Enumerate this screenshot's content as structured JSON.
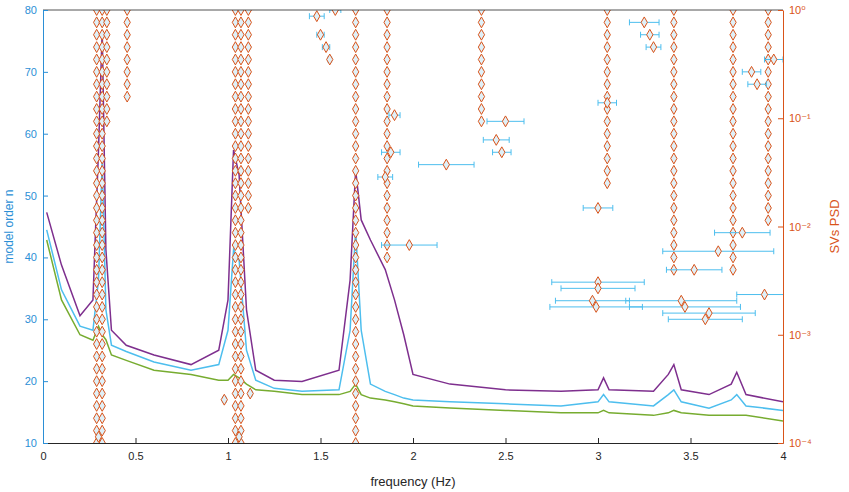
{
  "chart_data": {
    "type": "line",
    "x_label": "frequency (Hz)",
    "y_label": "model order n",
    "y2_label": "SVs PSD",
    "xlim": [
      0,
      4
    ],
    "xticks": [
      0,
      0.5,
      1,
      1.5,
      2,
      2.5,
      3,
      3.5,
      4
    ],
    "ylim": [
      10,
      80
    ],
    "yticks": [
      10,
      20,
      30,
      40,
      50,
      60,
      70,
      80
    ],
    "y2lim": [
      0.0001,
      1
    ],
    "y2ticks": [
      {
        "value": 0.0001,
        "label": "10⁻⁴"
      },
      {
        "value": 0.001,
        "label": "10⁻³"
      },
      {
        "value": 0.01,
        "label": "10⁻²"
      },
      {
        "value": 0.1,
        "label": "10⁻¹"
      },
      {
        "value": 1,
        "label": "10⁰"
      }
    ],
    "log": "y",
    "x": [
      0.02,
      0.1,
      0.2,
      0.27,
      0.3,
      0.32,
      0.34,
      0.37,
      0.45,
      0.6,
      0.8,
      0.95,
      1.0,
      1.03,
      1.06,
      1.1,
      1.15,
      1.25,
      1.4,
      1.6,
      1.66,
      1.69,
      1.72,
      1.77,
      1.85,
      1.9,
      1.95,
      2.0,
      2.2,
      2.5,
      2.8,
      3.0,
      3.03,
      3.06,
      3.3,
      3.38,
      3.41,
      3.45,
      3.6,
      3.72,
      3.75,
      3.8,
      4.0
    ],
    "series": [
      {
        "color": "#7E2F8E",
        "axis": "y2",
        "line_style": "solid",
        "values": [
          0.0135,
          0.0044,
          0.0015,
          0.0021,
          0.051,
          0.65,
          0.0061,
          0.0011,
          0.0008,
          0.00065,
          0.00053,
          0.00072,
          0.0021,
          0.051,
          0.03,
          0.0017,
          0.00047,
          0.00038,
          0.00037,
          0.00047,
          0.0032,
          0.033,
          0.0115,
          0.0075,
          0.004,
          0.0021,
          0.001,
          0.00043,
          0.00035,
          0.00031,
          0.0003,
          0.00031,
          0.0004,
          0.00031,
          0.0003,
          0.00043,
          0.00053,
          0.00031,
          0.00028,
          0.00035,
          0.00045,
          0.00028,
          0.00024
        ]
      },
      {
        "color": "#4DBEEE",
        "axis": "y2",
        "line_style": "solid",
        "values": [
          0.0093,
          0.0026,
          0.0012,
          0.0011,
          0.0032,
          0.041,
          0.0017,
          0.0008,
          0.0007,
          0.00056,
          0.00047,
          0.00053,
          0.0011,
          0.0061,
          0.0049,
          0.00072,
          0.00038,
          0.00032,
          0.0003,
          0.00031,
          0.0011,
          0.0093,
          0.0011,
          0.00035,
          0.0003,
          0.00028,
          0.00026,
          0.00025,
          0.00024,
          0.00023,
          0.00022,
          0.00024,
          0.00028,
          0.00024,
          0.00022,
          0.00028,
          0.00031,
          0.00024,
          0.00021,
          0.00025,
          0.00028,
          0.00022,
          0.0002
        ]
      },
      {
        "color": "#77AC30",
        "axis": "y2",
        "line_style": "solid",
        "values": [
          0.0075,
          0.0021,
          0.001,
          0.00089,
          0.0012,
          0.001,
          0.0009,
          0.00065,
          0.00058,
          0.00047,
          0.00043,
          0.00038,
          0.00038,
          0.00043,
          0.0004,
          0.00035,
          0.00031,
          0.0003,
          0.00028,
          0.00028,
          0.0003,
          0.00035,
          0.00028,
          0.00026,
          0.00025,
          0.00024,
          0.00023,
          0.00022,
          0.00021,
          0.0002,
          0.00019,
          0.00019,
          0.0002,
          0.00019,
          0.00018,
          0.00019,
          0.0002,
          0.00019,
          0.00018,
          0.00018,
          0.00018,
          0.00018,
          0.00016
        ]
      }
    ],
    "stable_poles": {
      "type": "scatter",
      "marker": "diamond",
      "color": "#D95319",
      "x": [
        0.29,
        0.29,
        0.29,
        0.29,
        0.29,
        0.29,
        0.29,
        0.29,
        0.29,
        0.29,
        0.29,
        0.29,
        0.29,
        0.29,
        0.29,
        0.29,
        0.29,
        0.29,
        0.29,
        0.29,
        0.29,
        0.29,
        0.29,
        0.29,
        0.29,
        0.29,
        0.29,
        0.29,
        0.29,
        0.29,
        0.29,
        0.29,
        0.29,
        0.29,
        0.29,
        0.29,
        0.32,
        0.32,
        0.32,
        0.32,
        0.32,
        0.32,
        0.32,
        0.32,
        0.32,
        0.32,
        0.32,
        0.32,
        0.32,
        0.32,
        0.32,
        0.32,
        0.32,
        0.32,
        0.32,
        0.32,
        0.32,
        0.32,
        0.32,
        0.32,
        0.32,
        0.32,
        0.32,
        0.32,
        0.32,
        0.32,
        0.32,
        0.32,
        0.32,
        0.32,
        0.32,
        0.32,
        1.04,
        1.04,
        1.04,
        1.04,
        1.04,
        1.04,
        1.04,
        1.04,
        1.04,
        1.04,
        1.04,
        1.04,
        1.04,
        1.04,
        1.04,
        1.04,
        1.04,
        1.04,
        1.04,
        1.04,
        1.04,
        1.04,
        1.04,
        1.04,
        1.04,
        1.04,
        1.04,
        1.04,
        1.04,
        1.04,
        1.04,
        1.04,
        1.04,
        1.04,
        1.04,
        1.04,
        1.07,
        1.07,
        1.07,
        1.07,
        1.07,
        1.07,
        1.07,
        1.07,
        1.07,
        1.07,
        1.07,
        1.07,
        1.07,
        1.07,
        1.07,
        1.07,
        1.07,
        1.07,
        1.07,
        1.07,
        1.07,
        1.07,
        1.07,
        1.07,
        1.07,
        1.07,
        1.07,
        1.07,
        1.07,
        1.07,
        1.07,
        1.07,
        1.07,
        1.07,
        1.07,
        1.07,
        1.69,
        1.69,
        1.69,
        1.69,
        1.69,
        1.69,
        1.69,
        1.69,
        1.69,
        1.69,
        1.69,
        1.69,
        1.69,
        1.69,
        1.69,
        1.69,
        1.69,
        1.69,
        1.69,
        1.69,
        1.69,
        1.69,
        1.69,
        1.69,
        1.69,
        1.69,
        1.69,
        1.69,
        1.69,
        1.69,
        1.69,
        1.69,
        1.69,
        1.69,
        1.69,
        1.69,
        0.345,
        0.345,
        0.345,
        0.345,
        0.345,
        0.345,
        0.345,
        0.345,
        0.345,
        0.345,
        0.455,
        0.455,
        0.455,
        0.455,
        0.455,
        0.455,
        0.455,
        0.455,
        1.11,
        1.11,
        1.11,
        1.11,
        1.11,
        1.11,
        1.11,
        1.11,
        1.11,
        1.11,
        1.11,
        1.11,
        1.11,
        1.11,
        1.11,
        1.11,
        1.11,
        1.86,
        1.86,
        1.86,
        1.86,
        1.86,
        1.86,
        1.86,
        1.86,
        1.86,
        1.86,
        1.86,
        1.86,
        1.86,
        1.86,
        1.86,
        1.86,
        1.86,
        1.86,
        1.86,
        1.86,
        1.86,
        2.37,
        2.37,
        2.37,
        2.37,
        2.37,
        2.37,
        2.37,
        2.37,
        2.37,
        2.37,
        3.05,
        3.05,
        3.05,
        3.05,
        3.05,
        3.05,
        3.05,
        3.05,
        3.05,
        3.05,
        3.05,
        3.05,
        3.05,
        3.05,
        3.05,
        3.41,
        3.41,
        3.41,
        3.41,
        3.41,
        3.41,
        3.41,
        3.41,
        3.41,
        3.41,
        3.41,
        3.41,
        3.41,
        3.41,
        3.41,
        3.41,
        3.41,
        3.41,
        3.41,
        3.41,
        3.41,
        3.41,
        3.73,
        3.73,
        3.73,
        3.73,
        3.73,
        3.73,
        3.73,
        3.73,
        3.73,
        3.73,
        3.73,
        3.73,
        3.73,
        3.73,
        3.73,
        3.73,
        3.73,
        3.73,
        3.73,
        3.73,
        3.73,
        3.73,
        3.92,
        3.92,
        3.92,
        3.92,
        3.92,
        3.92,
        3.92,
        3.92,
        3.92,
        3.92,
        3.92,
        3.92,
        3.92,
        3.92,
        3.92,
        3.92,
        3.92,
        3.92
      ],
      "y": [
        10,
        12,
        14,
        16,
        18,
        20,
        22,
        24,
        26,
        28,
        30,
        32,
        34,
        36,
        38,
        40,
        42,
        44,
        46,
        48,
        50,
        52,
        54,
        56,
        58,
        60,
        62,
        64,
        66,
        68,
        70,
        72,
        74,
        76,
        78,
        80,
        10,
        12,
        14,
        16,
        18,
        20,
        22,
        24,
        26,
        28,
        30,
        32,
        34,
        36,
        38,
        40,
        42,
        44,
        46,
        48,
        50,
        52,
        54,
        56,
        58,
        60,
        62,
        64,
        66,
        68,
        70,
        72,
        74,
        76,
        78,
        80,
        10,
        12,
        14,
        16,
        18,
        20,
        22,
        24,
        26,
        28,
        30,
        32,
        34,
        36,
        38,
        40,
        42,
        44,
        46,
        48,
        50,
        52,
        54,
        56,
        58,
        60,
        62,
        64,
        66,
        68,
        70,
        72,
        74,
        76,
        78,
        80,
        10,
        12,
        14,
        16,
        18,
        20,
        22,
        24,
        26,
        28,
        30,
        32,
        34,
        36,
        38,
        40,
        42,
        44,
        46,
        48,
        50,
        52,
        54,
        56,
        58,
        60,
        62,
        64,
        66,
        68,
        70,
        72,
        74,
        76,
        78,
        80,
        10,
        12,
        14,
        16,
        18,
        20,
        22,
        24,
        26,
        28,
        30,
        32,
        34,
        36,
        38,
        40,
        42,
        44,
        46,
        48,
        50,
        52,
        54,
        56,
        58,
        60,
        62,
        64,
        66,
        68,
        70,
        72,
        74,
        76,
        78,
        80,
        62,
        64,
        66,
        68,
        70,
        72,
        74,
        76,
        78,
        80,
        66,
        68,
        70,
        72,
        74,
        76,
        78,
        80,
        48,
        50,
        52,
        54,
        56,
        58,
        60,
        62,
        64,
        66,
        68,
        70,
        72,
        74,
        76,
        78,
        80,
        40,
        42,
        44,
        46,
        48,
        50,
        52,
        54,
        56,
        58,
        60,
        62,
        64,
        66,
        68,
        70,
        72,
        74,
        76,
        78,
        80,
        62,
        64,
        66,
        68,
        70,
        72,
        74,
        76,
        78,
        80,
        52,
        54,
        56,
        58,
        60,
        62,
        64,
        66,
        68,
        70,
        72,
        74,
        76,
        78,
        80,
        38,
        40,
        42,
        44,
        46,
        48,
        50,
        52,
        54,
        56,
        58,
        60,
        62,
        64,
        66,
        68,
        70,
        72,
        74,
        76,
        78,
        80,
        38,
        40,
        42,
        44,
        46,
        48,
        50,
        52,
        54,
        56,
        58,
        60,
        62,
        64,
        66,
        68,
        70,
        72,
        74,
        76,
        78,
        80,
        46,
        48,
        50,
        52,
        54,
        56,
        58,
        60,
        62,
        64,
        66,
        68,
        70,
        72,
        74,
        76,
        78,
        80
      ]
    },
    "poles": {
      "type": "scatter",
      "marker": "diamond",
      "color": "#D95319",
      "x": [
        1.48,
        1.5,
        1.53,
        1.55,
        1.58,
        1.9,
        1.88,
        1.85,
        2.18,
        2.45,
        2.48,
        2.5,
        1.98,
        3.0,
        3.0,
        2.97,
        2.99,
        3.45,
        3.47,
        3.6,
        3.58,
        3.9,
        3.52,
        3.65,
        3.78,
        3.83,
        3.86,
        3.95,
        3.25,
        3.28,
        3.3,
        3.0,
        3.05,
        0.98,
        1.12,
        0.3,
        1.06
      ],
      "y": [
        79,
        76,
        74,
        72,
        80,
        63,
        57,
        53,
        55,
        59,
        57,
        62,
        42,
        36,
        35,
        33,
        32,
        33,
        32,
        31,
        30,
        34,
        38,
        41,
        44,
        70,
        68,
        72,
        78,
        76,
        74,
        48,
        65,
        17,
        18,
        11,
        11
      ],
      "x_error": [
        0.04,
        0.02,
        0.02,
        0.01,
        0.03,
        0.03,
        0.05,
        0.04,
        0.15,
        0.07,
        0.05,
        0.1,
        0.15,
        0.25,
        0.2,
        0.2,
        0.25,
        0.3,
        0.3,
        0.25,
        0.2,
        0.15,
        0.15,
        0.3,
        0.15,
        0.05,
        0.05,
        0.05,
        0.08,
        0.05,
        0.04,
        0.08,
        0.05,
        0.01,
        0.01,
        0.01,
        0.01
      ]
    }
  }
}
